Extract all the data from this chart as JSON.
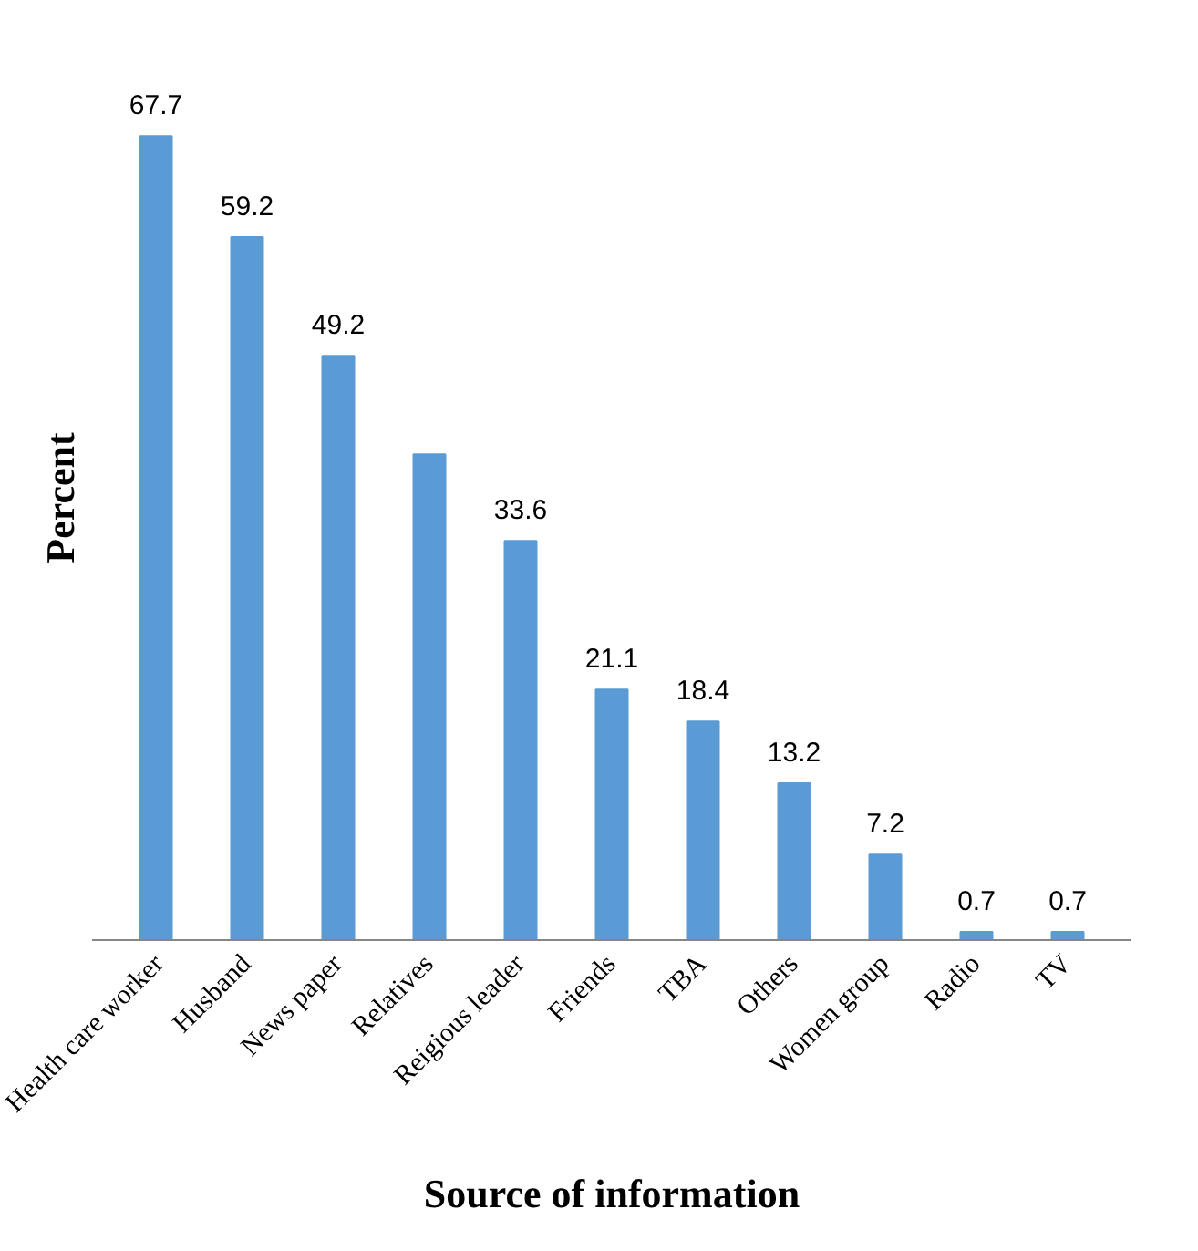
{
  "chart_data": {
    "type": "bar",
    "xlabel": "Source of information",
    "ylabel": "Percent",
    "categories": [
      "Health care worker",
      "Husband",
      "News paper",
      "Relatives",
      "Reigious leader",
      "Friends",
      "TBA",
      "Others",
      "Women group",
      "Radio",
      "TV"
    ],
    "values": [
      67.7,
      59.2,
      49.2,
      40.9,
      33.6,
      21.1,
      18.4,
      13.2,
      7.2,
      0.7,
      0.7
    ],
    "value_labels": [
      "67.7",
      "59.2",
      "49.2",
      null,
      "33.6",
      "21.1",
      "18.4",
      "13.2",
      "7.2",
      "0.7",
      "0.7"
    ],
    "color": "#5b9bd5"
  }
}
